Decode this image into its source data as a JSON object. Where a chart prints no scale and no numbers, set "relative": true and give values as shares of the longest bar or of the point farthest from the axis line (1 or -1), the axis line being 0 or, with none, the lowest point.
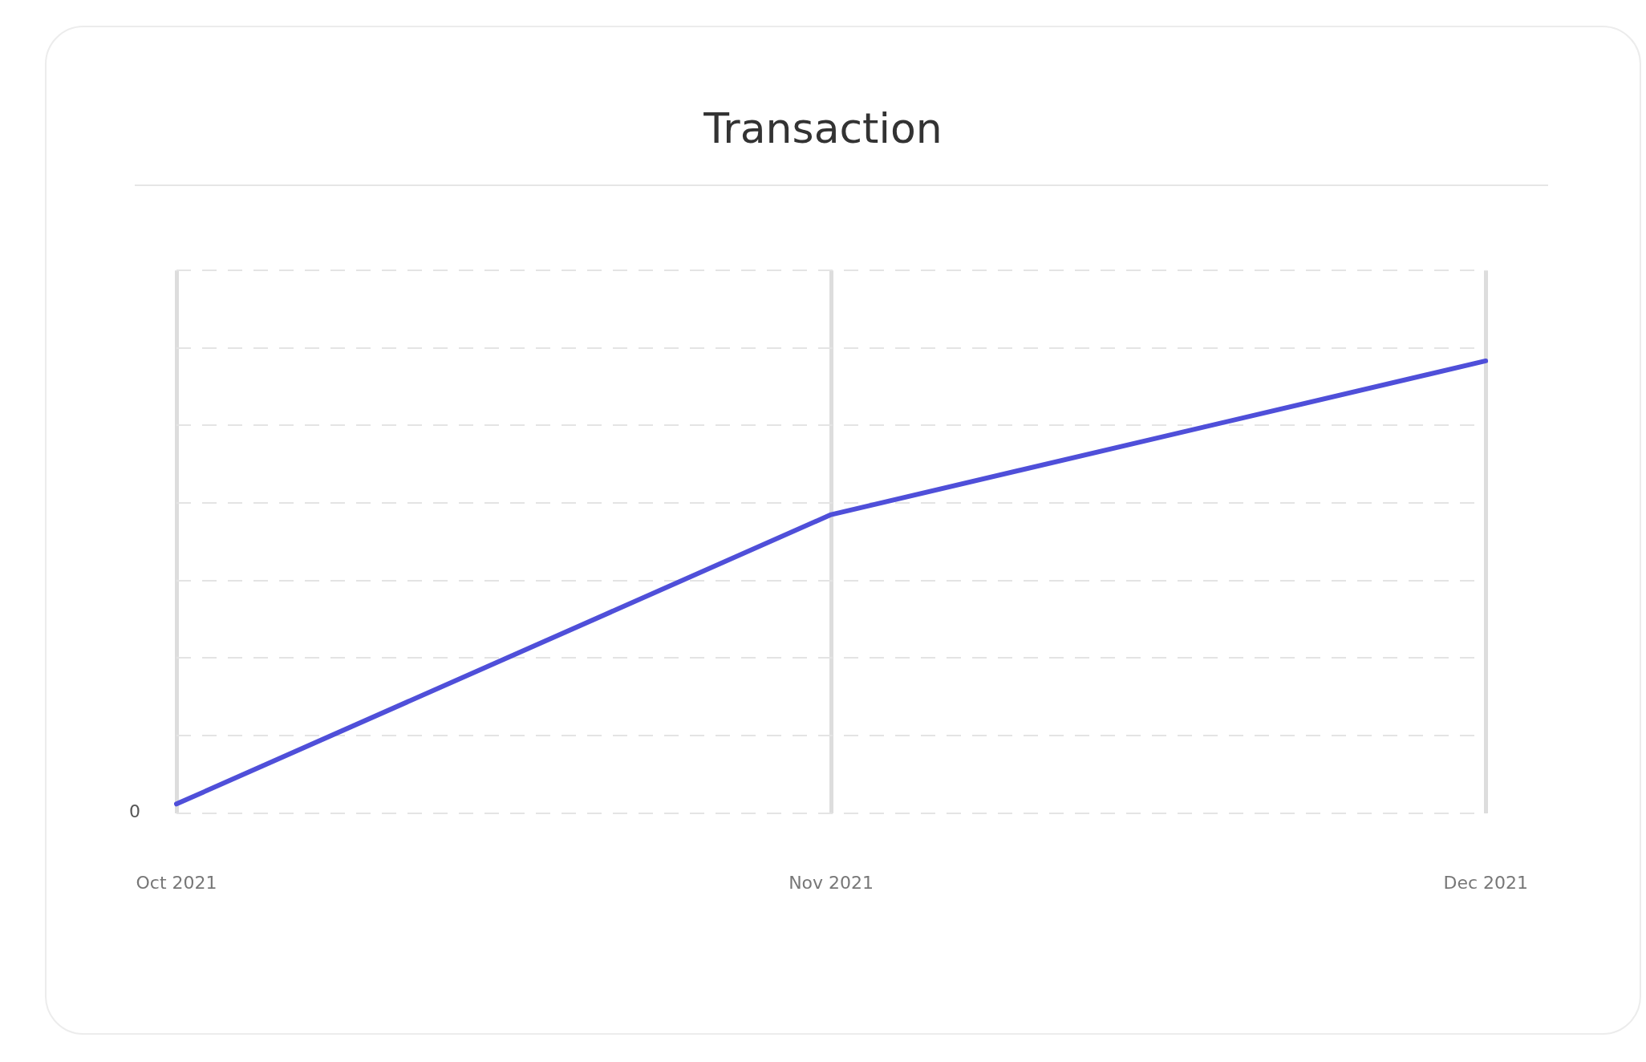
{
  "chart_data": {
    "type": "line",
    "title": "Transaction",
    "categories": [
      "Oct 2021",
      "Nov 2021",
      "Dec 2021"
    ],
    "series": [
      {
        "color": "#4f4fd9",
        "values": [
          0.02,
          0.66,
          1
        ]
      }
    ],
    "relative": true,
    "annotations": [
      "0"
    ],
    "grid": true,
    "legend": false,
    "marker": "none",
    "line_style": "solid"
  }
}
